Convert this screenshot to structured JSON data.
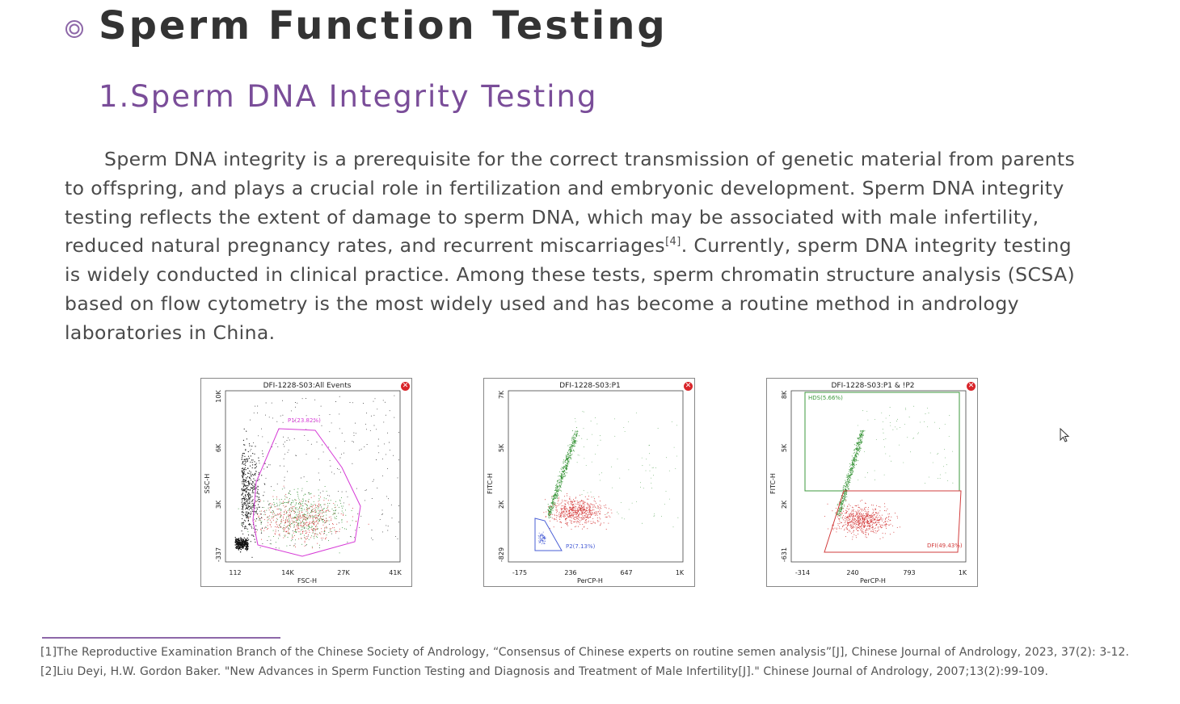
{
  "title": "Sperm Function Testing",
  "subtitle": "1.Sperm DNA Integrity Testing",
  "paragraph": {
    "line1": "Sperm DNA integrity is a prerequisite for the correct transmission of genetic material from parents",
    "line2": "to offspring, and plays a crucial role in fertilization and embryonic development. Sperm DNA integrity",
    "line3": "testing reflects the extent of damage to sperm DNA, which may be associated with male infertility,",
    "line4a": "reduced natural pregnancy rates, and recurrent miscarriages",
    "line4_ref": "[4]",
    "line4b": ".  Currently, sperm DNA integrity testing",
    "line5": "is widely conducted in clinical practice. Among these tests, sperm chromatin structure analysis (SCSA)",
    "line6": "based on flow cytometry is the most widely used and has become a routine method in andrology",
    "line7": "laboratories in China."
  },
  "plots": [
    {
      "title": "DFI-1228-S03:All Events",
      "xlabel": "FSC-H",
      "ylabel": "SSC-H",
      "xticks": [
        "112",
        "14K",
        "27K",
        "41K"
      ],
      "yticks": [
        "10K",
        "6K",
        "3K",
        "-337"
      ],
      "gate_label": "P1(23.82%)"
    },
    {
      "title": "DFI-1228-S03:P1",
      "xlabel": "PerCP-H",
      "ylabel": "FITC-H",
      "xticks": [
        "-175",
        "236",
        "647",
        "1K"
      ],
      "yticks": [
        "7K",
        "5K",
        "2K",
        "-829"
      ],
      "gate_label": "P2(7.13%)"
    },
    {
      "title": "DFI-1228-S03:P1 & !P2",
      "xlabel": "PerCP-H",
      "ylabel": "FITC-H",
      "xticks": [
        "-314",
        "240",
        "793",
        "1K"
      ],
      "yticks": [
        "8K",
        "5K",
        "2K",
        "-631"
      ],
      "gate_label_1": "HDS(5.66%)",
      "gate_label_2": "DFI(49.43%)"
    }
  ],
  "footnotes": [
    "[1]The Reproductive Examination Branch of the Chinese Society of Andrology, “Consensus of Chinese experts on routine semen analysis”[J], Chinese Journal of Andrology, 2023, 37(2): 3-12.",
    "[2]Liu Deyi, H.W. Gordon Baker. \"New Advances in Sperm Function Testing and Diagnosis and Treatment of Male Infertility[J].\" Chinese Journal of Andrology, 2007;13(2):99-109."
  ],
  "colors": {
    "accent": "#7a4d99",
    "gate_magenta": "#d63ad6",
    "gate_blue": "#4a5fd6",
    "gate_green": "#3c9a3c",
    "gate_red": "#d23c3c",
    "events_green": "#2f8f2f",
    "events_red": "#d12a2a",
    "events_black": "#111111"
  },
  "icons": {
    "title": "concentric-circle-bullet-icon",
    "close": "close-icon",
    "cursor": "mouse-pointer-icon"
  }
}
